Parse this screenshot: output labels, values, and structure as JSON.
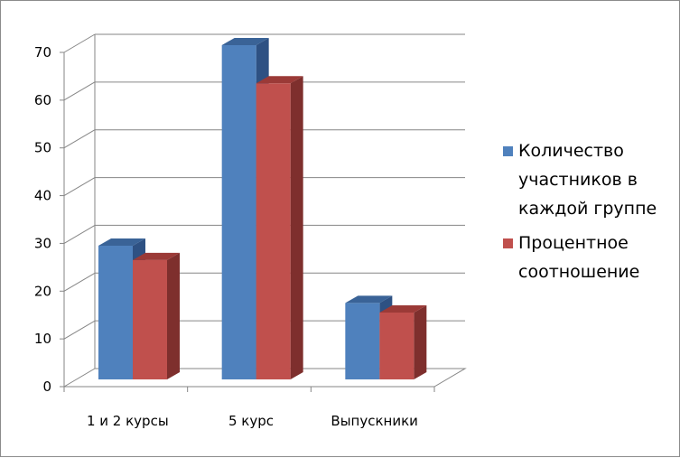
{
  "chart_data": {
    "type": "bar",
    "categories": [
      "1 и 2 курсы",
      "5 курс",
      "Выпускники"
    ],
    "series": [
      {
        "name": "Количество участников в каждой группе",
        "legend_lines": [
          "Количество",
          "участников в",
          "каждой группе"
        ],
        "values": [
          28,
          70,
          16
        ],
        "color": "#4F81BD",
        "top_color": "#3A6397",
        "side_color": "#2E5183"
      },
      {
        "name": "Процентное соотношение",
        "legend_lines": [
          "Процентное",
          "соотношение"
        ],
        "values": [
          25,
          62,
          14
        ],
        "color": "#C0504D",
        "top_color": "#9B3A37",
        "side_color": "#7E2F2D"
      }
    ],
    "ylim": [
      0,
      70
    ],
    "y_ticks": [
      "0",
      "10",
      "20",
      "30",
      "40",
      "50",
      "60",
      "70"
    ],
    "grid": true,
    "legend_position": "right"
  }
}
